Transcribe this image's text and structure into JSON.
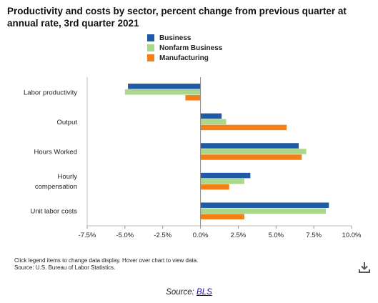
{
  "title": "Productivity and costs by sector, percent change from previous quarter at annual rate, 3rd quarter 2021",
  "legend": [
    {
      "label": "Business",
      "color": "#1f5aa6"
    },
    {
      "label": "Nonfarm Business",
      "color": "#a9d88a"
    },
    {
      "label": "Manufacturing",
      "color": "#f57f17"
    }
  ],
  "footer": {
    "note_line1": "Click legend items to change data display. Hover over chart to view data.",
    "note_line2": "Source: U.S. Bureau of Labor Statistics.",
    "download_icon": "download-icon"
  },
  "source": {
    "prefix": "Source:",
    "link": "BLS"
  },
  "chart_data": {
    "type": "bar",
    "orientation": "horizontal",
    "categories": [
      "Labor productivity",
      "Output",
      "Hours Worked",
      "Hourly compensation",
      "Unit labor costs"
    ],
    "category_lines": [
      [
        "Labor productivity"
      ],
      [
        "Output"
      ],
      [
        "Hours Worked"
      ],
      [
        "Hourly",
        "compensation"
      ],
      [
        "Unit labor costs"
      ]
    ],
    "series": [
      {
        "name": "Business",
        "color": "#1f5aa6",
        "values": [
          -4.8,
          1.4,
          6.5,
          3.3,
          8.5
        ]
      },
      {
        "name": "Nonfarm Business",
        "color": "#a9d88a",
        "values": [
          -5.0,
          1.7,
          7.0,
          2.9,
          8.3
        ]
      },
      {
        "name": "Manufacturing",
        "color": "#f57f17",
        "values": [
          -1.0,
          5.7,
          6.7,
          1.9,
          2.9
        ]
      }
    ],
    "xlim": [
      -7.5,
      10.0
    ],
    "xticks": [
      -7.5,
      -5.0,
      -2.5,
      0.0,
      2.5,
      5.0,
      7.5,
      10.0
    ],
    "xtick_labels": [
      "-7.5%",
      "-5.0%",
      "-2.5%",
      "0.0%",
      "2.5%",
      "5.0%",
      "7.5%",
      "10.0%"
    ],
    "xlabel": "",
    "ylabel": "",
    "grid": false
  }
}
